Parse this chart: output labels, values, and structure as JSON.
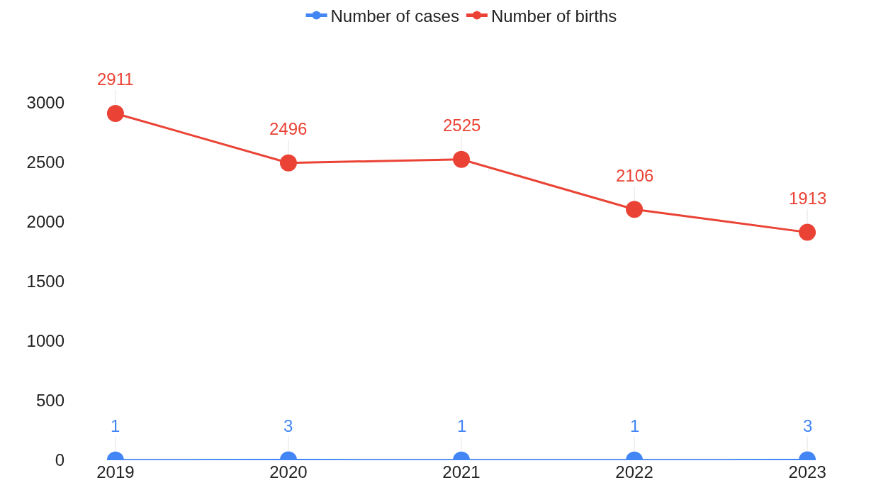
{
  "chart_data": {
    "type": "line",
    "categories": [
      "2019",
      "2020",
      "2021",
      "2022",
      "2023"
    ],
    "series": [
      {
        "name": "Number of cases",
        "color": "#4285f4",
        "values": [
          1,
          3,
          1,
          1,
          3
        ]
      },
      {
        "name": "Number of births",
        "color": "#ea4335",
        "values": [
          2911,
          2496,
          2525,
          2106,
          1913
        ]
      }
    ],
    "ylim": [
      0,
      3000
    ],
    "yticks": [
      0,
      500,
      1000,
      1500,
      2000,
      2500,
      3000
    ],
    "grid": false,
    "legend": "top",
    "marker": "circle",
    "line_style": "solid",
    "data_labels": true
  }
}
